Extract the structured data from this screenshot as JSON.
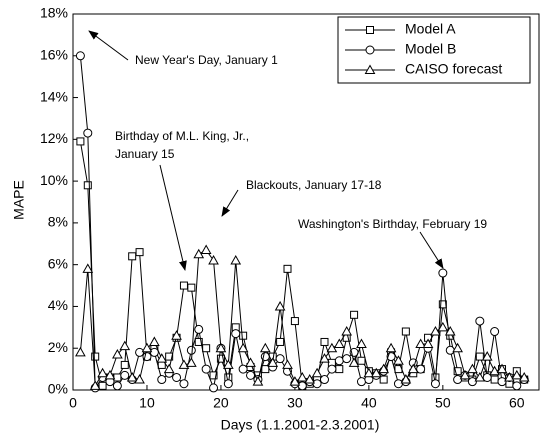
{
  "chart_data": {
    "type": "line",
    "xlabel": "Days (1.1.2001-2.3.2001)",
    "ylabel": "MAPE",
    "x": [
      1,
      2,
      3,
      4,
      5,
      6,
      7,
      8,
      9,
      10,
      11,
      12,
      13,
      14,
      15,
      16,
      17,
      18,
      19,
      20,
      21,
      22,
      23,
      24,
      25,
      26,
      27,
      28,
      29,
      30,
      31,
      32,
      33,
      34,
      35,
      36,
      37,
      38,
      39,
      40,
      41,
      42,
      43,
      44,
      45,
      46,
      47,
      48,
      49,
      50,
      51,
      52,
      53,
      54,
      55,
      56,
      57,
      58,
      59,
      60,
      61
    ],
    "series": [
      {
        "name": "Model A",
        "color": "#000000",
        "marker": "square",
        "values": [
          11.9,
          9.8,
          1.6,
          0.2,
          0.6,
          0.6,
          1.2,
          6.4,
          6.6,
          1.6,
          2.0,
          1.2,
          1.6,
          2.5,
          5.0,
          4.9,
          2.3,
          2.0,
          0.7,
          1.5,
          0.6,
          3.0,
          2.6,
          1.1,
          0.7,
          1.0,
          1.6,
          2.3,
          5.8,
          3.3,
          0.2,
          0.3,
          0.5,
          2.3,
          1.3,
          1.0,
          2.5,
          3.6,
          1.4,
          0.9,
          0.8,
          0.5,
          1.8,
          1.0,
          2.8,
          0.8,
          1.0,
          2.5,
          0.6,
          4.1,
          2.6,
          0.9,
          0.6,
          0.5,
          1.6,
          0.7,
          0.5,
          1.0,
          0.3,
          0.9,
          0.5
        ]
      },
      {
        "name": "Model B",
        "color": "#000000",
        "marker": "circle",
        "values": [
          16.0,
          12.3,
          0.1,
          0.6,
          0.4,
          0.2,
          0.7,
          0.5,
          1.8,
          1.6,
          1.8,
          0.5,
          0.8,
          0.6,
          0.3,
          1.9,
          2.9,
          1.0,
          0.1,
          2.0,
          0.3,
          2.7,
          1.0,
          0.7,
          0.5,
          1.6,
          1.1,
          1.5,
          0.9,
          0.3,
          0.2,
          0.4,
          0.3,
          0.5,
          1.0,
          1.4,
          1.5,
          1.8,
          0.4,
          0.5,
          0.7,
          0.9,
          1.6,
          0.3,
          0.4,
          1.3,
          1.0,
          2.0,
          0.3,
          5.6,
          1.9,
          0.5,
          0.7,
          0.4,
          3.3,
          0.6,
          2.8,
          0.4,
          0.6,
          0.2,
          0.5
        ]
      },
      {
        "name": "CAISO forecast",
        "color": "#000000",
        "marker": "triangle",
        "values": [
          1.8,
          5.8,
          0.2,
          0.8,
          0.7,
          1.7,
          2.1,
          0.6,
          0.5,
          2.0,
          2.3,
          1.5,
          1.0,
          2.6,
          1.2,
          1.3,
          6.5,
          6.7,
          6.2,
          2.0,
          1.2,
          6.2,
          2.0,
          1.3,
          0.4,
          2.0,
          1.3,
          4.0,
          1.2,
          0.4,
          0.6,
          0.5,
          0.8,
          1.5,
          2.0,
          2.2,
          2.8,
          1.3,
          2.2,
          0.8,
          0.8,
          1.0,
          2.0,
          1.4,
          0.5,
          1.0,
          2.2,
          2.2,
          2.8,
          3.0,
          2.8,
          2.0,
          0.7,
          1.0,
          0.6,
          1.6,
          0.9,
          1.0,
          0.6,
          0.7,
          0.6
        ]
      }
    ],
    "xlim": [
      0,
      63
    ],
    "xticks": [
      0,
      10,
      20,
      30,
      40,
      50,
      60
    ],
    "ylim": [
      0,
      18
    ],
    "yticks": [
      {
        "value": 0,
        "label": "0%"
      },
      {
        "value": 2,
        "label": "2%"
      },
      {
        "value": 4,
        "label": "4%"
      },
      {
        "value": 6,
        "label": "6%"
      },
      {
        "value": 8,
        "label": "8%"
      },
      {
        "value": 10,
        "label": "10%"
      },
      {
        "value": 12,
        "label": "12%"
      },
      {
        "value": 14,
        "label": "14%"
      },
      {
        "value": 16,
        "label": "16%"
      },
      {
        "value": 18,
        "label": "18%"
      }
    ],
    "legend": "upper right",
    "annotations": [
      "New Year's Day, January 1",
      "Birthday of M.L. King, Jr.,",
      "January 15",
      "Blackouts, January 17-18",
      "Washington's Birthday, February 19"
    ]
  }
}
